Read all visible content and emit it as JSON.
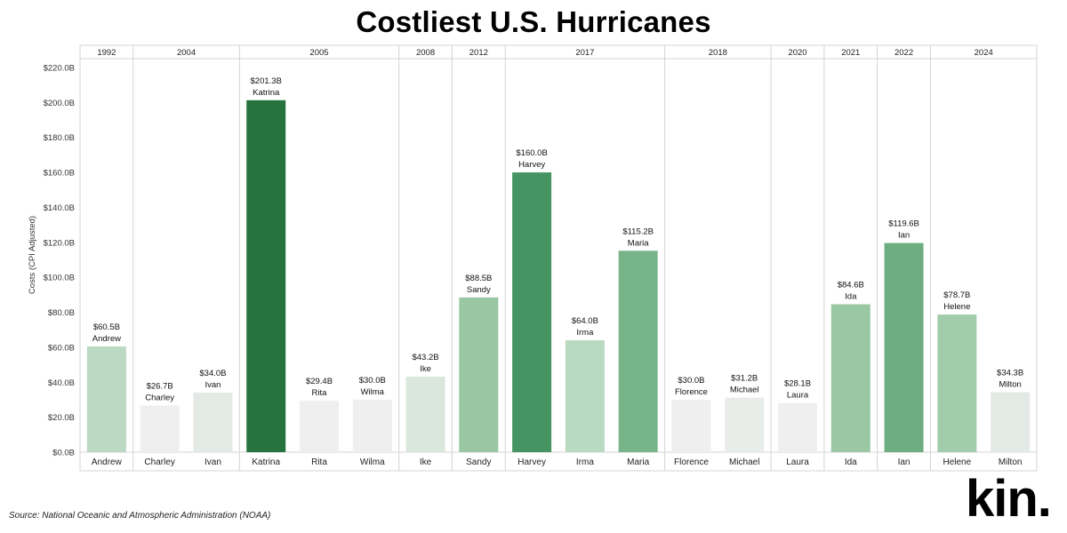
{
  "page": {
    "title": "Costliest U.S. Hurricanes",
    "source": "Source: National Oceanic and Atmospheric Administration (NOAA)",
    "logo": "kin."
  },
  "chart_data": {
    "type": "bar",
    "title": "Costliest U.S. Hurricanes",
    "ylabel": "Costs (CPI Adjusted)",
    "ylim": [
      0,
      220
    ],
    "yticks": [
      0,
      20,
      40,
      60,
      80,
      100,
      120,
      140,
      160,
      180,
      200,
      220
    ],
    "ytick_labels": [
      "$0.0B",
      "$20.0B",
      "$40.0B",
      "$60.0B",
      "$80.0B",
      "$100.0B",
      "$120.0B",
      "$140.0B",
      "$160.0B",
      "$180.0B",
      "$200.0B",
      "$220.0B"
    ],
    "year_groups": [
      {
        "year": "1992",
        "count": 1
      },
      {
        "year": "2004",
        "count": 2
      },
      {
        "year": "2005",
        "count": 3
      },
      {
        "year": "2008",
        "count": 1
      },
      {
        "year": "2012",
        "count": 1
      },
      {
        "year": "2017",
        "count": 3
      },
      {
        "year": "2018",
        "count": 2
      },
      {
        "year": "2020",
        "count": 1
      },
      {
        "year": "2021",
        "count": 1
      },
      {
        "year": "2022",
        "count": 1
      },
      {
        "year": "2024",
        "count": 2
      }
    ],
    "categories": [
      "Andrew",
      "Charley",
      "Ivan",
      "Katrina",
      "Rita",
      "Wilma",
      "Ike",
      "Sandy",
      "Harvey",
      "Irma",
      "Maria",
      "Florence",
      "Michael",
      "Laura",
      "Ida",
      "Ian",
      "Helene",
      "Milton"
    ],
    "values": [
      60.5,
      26.7,
      34.0,
      201.3,
      29.4,
      30.0,
      43.2,
      88.5,
      160.0,
      64.0,
      115.2,
      30.0,
      31.2,
      28.1,
      84.6,
      119.6,
      78.7,
      34.3
    ],
    "value_labels": [
      "$60.5B",
      "$26.7B",
      "$34.0B",
      "$201.3B",
      "$29.4B",
      "$30.0B",
      "$43.2B",
      "$88.5B",
      "$160.0B",
      "$64.0B",
      "$115.2B",
      "$30.0B",
      "$31.2B",
      "$28.1B",
      "$84.6B",
      "$119.6B",
      "$78.7B",
      "$34.3B"
    ],
    "colors": [
      "#bcd9c4",
      "#efefef",
      "#e3e9e4",
      "#26733f",
      "#efefef",
      "#efefef",
      "#d9e7dc",
      "#99c7a4",
      "#459462",
      "#b9d9c1",
      "#78b489",
      "#efefef",
      "#e9edea",
      "#efefef",
      "#9ac8a5",
      "#6ead80",
      "#a2cdac",
      "#e3e9e4"
    ],
    "grid": false,
    "legend": "none"
  }
}
